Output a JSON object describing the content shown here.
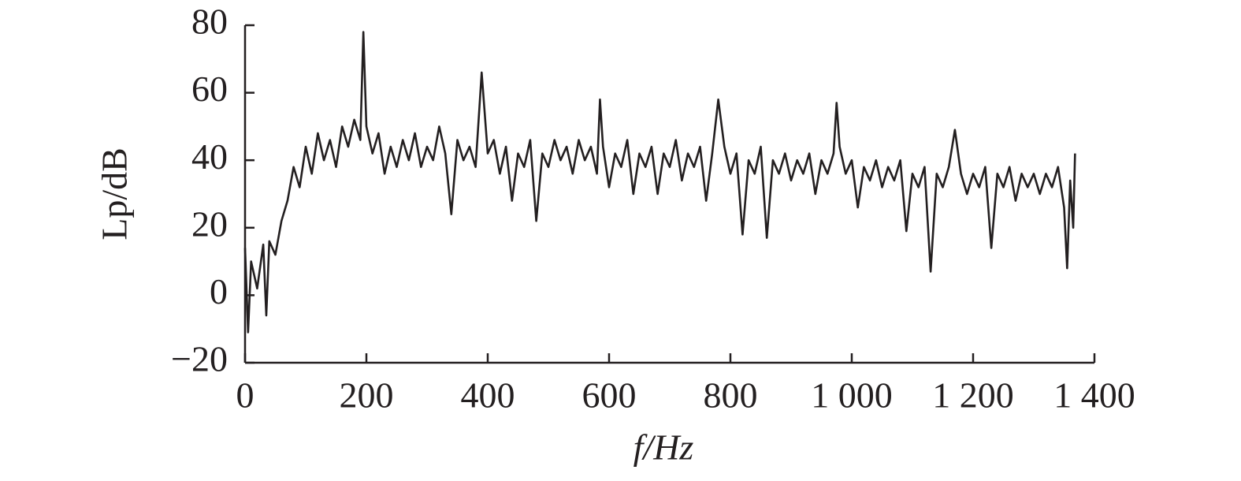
{
  "chart_data": {
    "type": "line",
    "xlabel": "f/Hz",
    "ylabel": "Lp/dB",
    "xlim": [
      0,
      1400
    ],
    "ylim": [
      -20,
      80
    ],
    "xticks": [
      0,
      200,
      400,
      600,
      800,
      {
        "value": 1000,
        "label": "1 000"
      },
      {
        "value": 1200,
        "label": "1 200"
      },
      {
        "value": 1400,
        "label": "1 400"
      }
    ],
    "yticks": [
      {
        "value": -20,
        "label": "−20"
      },
      0,
      20,
      40,
      60,
      80
    ],
    "grid": false,
    "series": [
      {
        "name": "Lp",
        "color": "#231f20",
        "x": [
          0,
          5,
          10,
          20,
          30,
          35,
          40,
          50,
          60,
          70,
          80,
          90,
          100,
          110,
          120,
          130,
          140,
          150,
          160,
          170,
          180,
          190,
          195,
          200,
          210,
          220,
          230,
          240,
          250,
          260,
          270,
          280,
          290,
          300,
          310,
          320,
          330,
          340,
          350,
          360,
          370,
          380,
          390,
          400,
          410,
          420,
          430,
          440,
          450,
          460,
          470,
          480,
          490,
          500,
          510,
          520,
          530,
          540,
          550,
          560,
          570,
          580,
          585,
          590,
          600,
          610,
          620,
          630,
          640,
          650,
          660,
          670,
          680,
          690,
          700,
          710,
          720,
          730,
          740,
          750,
          760,
          770,
          780,
          790,
          800,
          810,
          820,
          830,
          840,
          850,
          860,
          870,
          880,
          890,
          900,
          910,
          920,
          930,
          940,
          950,
          960,
          970,
          975,
          980,
          990,
          1000,
          1010,
          1020,
          1030,
          1040,
          1050,
          1060,
          1070,
          1080,
          1090,
          1100,
          1110,
          1120,
          1130,
          1140,
          1150,
          1160,
          1170,
          1180,
          1190,
          1200,
          1210,
          1220,
          1230,
          1240,
          1250,
          1260,
          1270,
          1280,
          1290,
          1300,
          1310,
          1320,
          1330,
          1340,
          1350,
          1355,
          1360,
          1365,
          1368
        ],
        "values": [
          14,
          -11,
          10,
          2,
          15,
          -6,
          16,
          12,
          22,
          28,
          38,
          32,
          44,
          36,
          48,
          40,
          46,
          38,
          50,
          44,
          52,
          46,
          78,
          50,
          42,
          48,
          36,
          44,
          38,
          46,
          40,
          48,
          38,
          44,
          40,
          50,
          42,
          24,
          46,
          40,
          44,
          38,
          66,
          42,
          46,
          36,
          44,
          28,
          42,
          38,
          46,
          22,
          42,
          38,
          46,
          40,
          44,
          36,
          46,
          40,
          44,
          36,
          58,
          44,
          32,
          42,
          38,
          46,
          30,
          42,
          38,
          44,
          30,
          42,
          38,
          46,
          34,
          42,
          38,
          44,
          28,
          42,
          58,
          44,
          36,
          42,
          18,
          40,
          36,
          44,
          17,
          40,
          36,
          42,
          34,
          40,
          36,
          42,
          30,
          40,
          36,
          42,
          57,
          44,
          36,
          40,
          26,
          38,
          34,
          40,
          32,
          38,
          34,
          40,
          19,
          36,
          32,
          38,
          7,
          36,
          32,
          38,
          49,
          36,
          30,
          36,
          32,
          38,
          14,
          36,
          32,
          38,
          28,
          36,
          32,
          36,
          30,
          36,
          32,
          38,
          26,
          8,
          34,
          20,
          42
        ]
      }
    ]
  }
}
